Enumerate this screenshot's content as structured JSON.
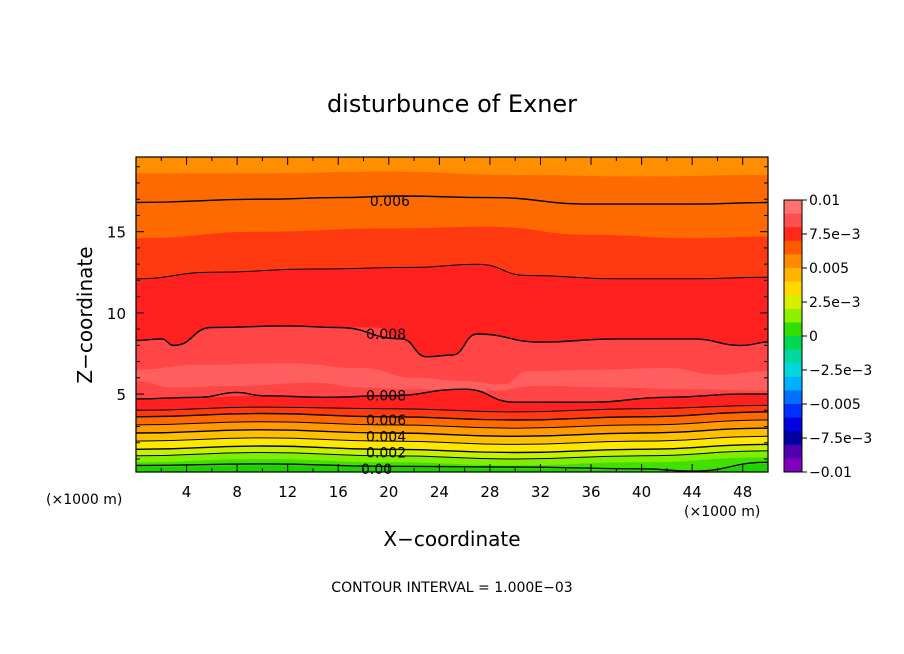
{
  "chart_data": {
    "type": "contour",
    "title": "disturbunce of Exner",
    "xlabel": "X−coordinate",
    "ylabel": "Z−coordinate",
    "x_unit": "(×1000 m)",
    "y_unit": "(×1000 m)",
    "xlim": [
      0,
      50
    ],
    "ylim": [
      0.2,
      19.6
    ],
    "x_ticks": [
      4,
      8,
      12,
      16,
      20,
      24,
      28,
      32,
      36,
      40,
      44,
      48
    ],
    "x_tick_labels": [
      "4",
      "8",
      "12",
      "16",
      "20",
      "24",
      "28",
      "32",
      "36",
      "40",
      "44",
      "48"
    ],
    "y_ticks": [
      5,
      10,
      15
    ],
    "y_tick_labels": [
      "5",
      "10",
      "15"
    ],
    "contour_interval_label": "CONTOUR INTERVAL = 1.000E−03",
    "colorbar": {
      "min": -0.01,
      "max": 0.01,
      "labels": [
        "0.01",
        "7.5e−3",
        "0.005",
        "2.5e−3",
        "0",
        "−2.5e−3",
        "−0.005",
        "−7.5e−3",
        "−0.01"
      ],
      "colors": [
        "#ff7070",
        "#ff5050",
        "#ff2a1a",
        "#ff5a00",
        "#ff8a00",
        "#ffb400",
        "#ffd800",
        "#d8f000",
        "#90f000",
        "#30e000",
        "#00d850",
        "#00d8a0",
        "#00d8e0",
        "#00b0ff",
        "#0070ff",
        "#0030ff",
        "#0000e0",
        "#0000a0",
        "#5000b0",
        "#8000c0"
      ]
    },
    "bands": [
      {
        "color": "#ff8f00",
        "top": [
          [
            0,
            19.6
          ],
          [
            50,
            19.6
          ]
        ]
      },
      {
        "color": "#ff6a00",
        "top": [
          [
            0,
            18.6
          ],
          [
            10,
            18.6
          ],
          [
            20,
            18.7
          ],
          [
            30,
            18.5
          ],
          [
            40,
            18.4
          ],
          [
            50,
            18.5
          ]
        ]
      },
      {
        "color": "#ff3a10",
        "top": [
          [
            0,
            14.6
          ],
          [
            10,
            15.0
          ],
          [
            20,
            15.2
          ],
          [
            28,
            15.3
          ],
          [
            36,
            14.8
          ],
          [
            44,
            14.6
          ],
          [
            50,
            14.7
          ]
        ]
      },
      {
        "color": "#ff2020",
        "top": [
          [
            0,
            12.1
          ],
          [
            6,
            12.5
          ],
          [
            14,
            12.7
          ],
          [
            22,
            12.8
          ],
          [
            27,
            13.0
          ],
          [
            31,
            12.3
          ],
          [
            38,
            12.1
          ],
          [
            44,
            12.1
          ],
          [
            50,
            12.2
          ]
        ]
      },
      {
        "color": "#ff4545",
        "top": [
          [
            0,
            8.3
          ],
          [
            2,
            8.4
          ],
          [
            3,
            8.0
          ],
          [
            6,
            9.1
          ],
          [
            12,
            9.2
          ],
          [
            19,
            9.1
          ],
          [
            21,
            8.4
          ],
          [
            23,
            7.3
          ],
          [
            25,
            7.4
          ],
          [
            27,
            8.7
          ],
          [
            32,
            8.2
          ],
          [
            38,
            8.4
          ],
          [
            44,
            8.4
          ],
          [
            48,
            8.0
          ],
          [
            50,
            8.2
          ]
        ]
      },
      {
        "color": "#ff5f5f",
        "top": [
          [
            0,
            6.5
          ],
          [
            5,
            6.8
          ],
          [
            12,
            6.9
          ],
          [
            18,
            6.6
          ],
          [
            22,
            6.0
          ],
          [
            26,
            5.8
          ],
          [
            29,
            5.6
          ],
          [
            31,
            6.4
          ],
          [
            36,
            6.5
          ],
          [
            42,
            6.6
          ],
          [
            46,
            6.2
          ],
          [
            50,
            6.4
          ]
        ]
      },
      {
        "color": "#ff4545",
        "top": [
          [
            0,
            5.8
          ],
          [
            3,
            5.4
          ],
          [
            8,
            5.5
          ],
          [
            14,
            5.7
          ],
          [
            18,
            5.4
          ],
          [
            22,
            5.3
          ],
          [
            28,
            5.2
          ],
          [
            32,
            5.5
          ],
          [
            38,
            5.4
          ],
          [
            44,
            5.3
          ],
          [
            50,
            5.2
          ]
        ]
      },
      {
        "color": "#ff2020",
        "top": [
          [
            0,
            4.7
          ],
          [
            5,
            4.8
          ],
          [
            10,
            4.9
          ],
          [
            15,
            4.8
          ],
          [
            20,
            4.9
          ],
          [
            26,
            5.3
          ],
          [
            30,
            4.5
          ],
          [
            36,
            4.5
          ],
          [
            42,
            4.8
          ],
          [
            48,
            5.0
          ],
          [
            50,
            5.0
          ]
        ]
      },
      {
        "color": "#ff3a10",
        "top": [
          [
            0,
            4.0
          ],
          [
            10,
            4.2
          ],
          [
            20,
            4.1
          ],
          [
            30,
            3.9
          ],
          [
            40,
            4.1
          ],
          [
            50,
            4.3
          ]
        ]
      },
      {
        "color": "#ff6a00",
        "top": [
          [
            0,
            3.6
          ],
          [
            10,
            3.8
          ],
          [
            20,
            3.6
          ],
          [
            30,
            3.4
          ],
          [
            40,
            3.6
          ],
          [
            50,
            3.9
          ]
        ]
      },
      {
        "color": "#ff9a00",
        "top": [
          [
            0,
            3.1
          ],
          [
            10,
            3.3
          ],
          [
            20,
            3.1
          ],
          [
            30,
            2.9
          ],
          [
            40,
            3.1
          ],
          [
            50,
            3.4
          ]
        ]
      },
      {
        "color": "#ffc000",
        "top": [
          [
            0,
            2.6
          ],
          [
            10,
            2.8
          ],
          [
            20,
            2.6
          ],
          [
            30,
            2.4
          ],
          [
            40,
            2.6
          ],
          [
            50,
            2.9
          ]
        ]
      },
      {
        "color": "#ffe800",
        "top": [
          [
            0,
            2.1
          ],
          [
            10,
            2.3
          ],
          [
            20,
            2.1
          ],
          [
            30,
            1.9
          ],
          [
            40,
            2.1
          ],
          [
            50,
            2.4
          ]
        ]
      },
      {
        "color": "#c8f000",
        "top": [
          [
            0,
            1.6
          ],
          [
            10,
            1.8
          ],
          [
            20,
            1.6
          ],
          [
            30,
            1.4
          ],
          [
            40,
            1.6
          ],
          [
            50,
            1.9
          ]
        ]
      },
      {
        "color": "#80ee00",
        "top": [
          [
            0,
            1.2
          ],
          [
            10,
            1.4
          ],
          [
            20,
            1.2
          ],
          [
            30,
            1.0
          ],
          [
            40,
            1.2
          ],
          [
            50,
            1.5
          ]
        ]
      },
      {
        "color": "#40e000",
        "top": [
          [
            0,
            0.8
          ],
          [
            10,
            1.0
          ],
          [
            20,
            0.8
          ],
          [
            30,
            0.6
          ],
          [
            40,
            0.8
          ],
          [
            50,
            1.1
          ]
        ]
      },
      {
        "color": "#20d000",
        "top": [
          [
            0,
            0.5
          ],
          [
            10,
            0.6
          ],
          [
            20,
            0.5
          ],
          [
            30,
            0.4
          ],
          [
            40,
            0.3
          ],
          [
            44,
            0.2
          ],
          [
            50,
            0.7
          ]
        ]
      }
    ],
    "contours": [
      {
        "level": "0.006",
        "width": 1.4,
        "points": [
          [
            0,
            16.8
          ],
          [
            10,
            17.0
          ],
          [
            16,
            17.1
          ],
          [
            21,
            17.2
          ],
          [
            28,
            17.1
          ],
          [
            36,
            16.7
          ],
          [
            44,
            16.7
          ],
          [
            50,
            16.8
          ]
        ],
        "label": "0.006",
        "label_at": [
          18.5,
          16.9
        ]
      },
      {
        "level": "",
        "width": 1.0,
        "points": [
          [
            0,
            12.1
          ],
          [
            6,
            12.5
          ],
          [
            14,
            12.7
          ],
          [
            22,
            12.8
          ],
          [
            27,
            13.0
          ],
          [
            31,
            12.3
          ],
          [
            38,
            12.1
          ],
          [
            44,
            12.1
          ],
          [
            50,
            12.2
          ]
        ]
      },
      {
        "level": "0.008",
        "width": 1.4,
        "points": [
          [
            0,
            8.3
          ],
          [
            2,
            8.4
          ],
          [
            3,
            8.0
          ],
          [
            6,
            9.1
          ],
          [
            12,
            9.2
          ],
          [
            16,
            9.1
          ],
          [
            21,
            8.4
          ],
          [
            23,
            7.3
          ],
          [
            25,
            7.4
          ],
          [
            27,
            8.7
          ],
          [
            32,
            8.2
          ],
          [
            38,
            8.4
          ],
          [
            44,
            8.4
          ],
          [
            48,
            8.0
          ],
          [
            50,
            8.2
          ]
        ],
        "label": "0.008",
        "label_at": [
          18.2,
          8.7
        ]
      },
      {
        "level": "0.008",
        "width": 1.4,
        "points": [
          [
            0,
            4.7
          ],
          [
            5,
            4.8
          ],
          [
            8,
            5.1
          ],
          [
            10,
            4.9
          ],
          [
            15,
            4.8
          ],
          [
            20,
            4.9
          ],
          [
            26,
            5.3
          ],
          [
            30,
            4.5
          ],
          [
            36,
            4.5
          ],
          [
            42,
            4.8
          ],
          [
            48,
            5.0
          ],
          [
            50,
            5.0
          ]
        ],
        "label": "0.008",
        "label_at": [
          18.2,
          4.9
        ]
      },
      {
        "level": "",
        "width": 1.0,
        "points": [
          [
            0,
            4.0
          ],
          [
            10,
            4.2
          ],
          [
            20,
            4.1
          ],
          [
            30,
            3.9
          ],
          [
            40,
            4.1
          ],
          [
            50,
            4.3
          ]
        ]
      },
      {
        "level": "0.006",
        "width": 1.4,
        "points": [
          [
            0,
            3.6
          ],
          [
            10,
            3.8
          ],
          [
            20,
            3.6
          ],
          [
            30,
            3.4
          ],
          [
            40,
            3.6
          ],
          [
            50,
            3.9
          ]
        ],
        "label": "0.006",
        "label_at": [
          18.2,
          3.4
        ]
      },
      {
        "level": "",
        "width": 1.0,
        "points": [
          [
            0,
            3.1
          ],
          [
            10,
            3.3
          ],
          [
            20,
            3.1
          ],
          [
            30,
            2.9
          ],
          [
            40,
            3.1
          ],
          [
            50,
            3.4
          ]
        ]
      },
      {
        "level": "0.004",
        "width": 1.4,
        "points": [
          [
            0,
            2.6
          ],
          [
            10,
            2.8
          ],
          [
            20,
            2.6
          ],
          [
            30,
            2.4
          ],
          [
            40,
            2.6
          ],
          [
            50,
            2.9
          ]
        ],
        "label": "0.004",
        "label_at": [
          18.2,
          2.4
        ]
      },
      {
        "level": "",
        "width": 1.0,
        "points": [
          [
            0,
            2.1
          ],
          [
            10,
            2.3
          ],
          [
            20,
            2.1
          ],
          [
            30,
            1.9
          ],
          [
            40,
            2.1
          ],
          [
            50,
            2.4
          ]
        ]
      },
      {
        "level": "0.002",
        "width": 1.4,
        "points": [
          [
            0,
            1.6
          ],
          [
            10,
            1.8
          ],
          [
            20,
            1.6
          ],
          [
            30,
            1.4
          ],
          [
            40,
            1.6
          ],
          [
            50,
            1.9
          ]
        ],
        "label": "0.002",
        "label_at": [
          18.2,
          1.4
        ]
      },
      {
        "level": "",
        "width": 1.0,
        "points": [
          [
            0,
            1.2
          ],
          [
            10,
            1.4
          ],
          [
            20,
            1.2
          ],
          [
            30,
            1.0
          ],
          [
            40,
            1.2
          ],
          [
            50,
            1.5
          ]
        ]
      },
      {
        "level": "0.00",
        "width": 1.4,
        "points": [
          [
            0,
            0.6
          ],
          [
            10,
            0.7
          ],
          [
            20,
            0.55
          ],
          [
            30,
            0.5
          ],
          [
            40,
            0.4
          ],
          [
            44,
            0.25
          ],
          [
            50,
            0.8
          ]
        ],
        "label": "0.00",
        "label_at": [
          17.8,
          0.4
        ]
      }
    ]
  }
}
